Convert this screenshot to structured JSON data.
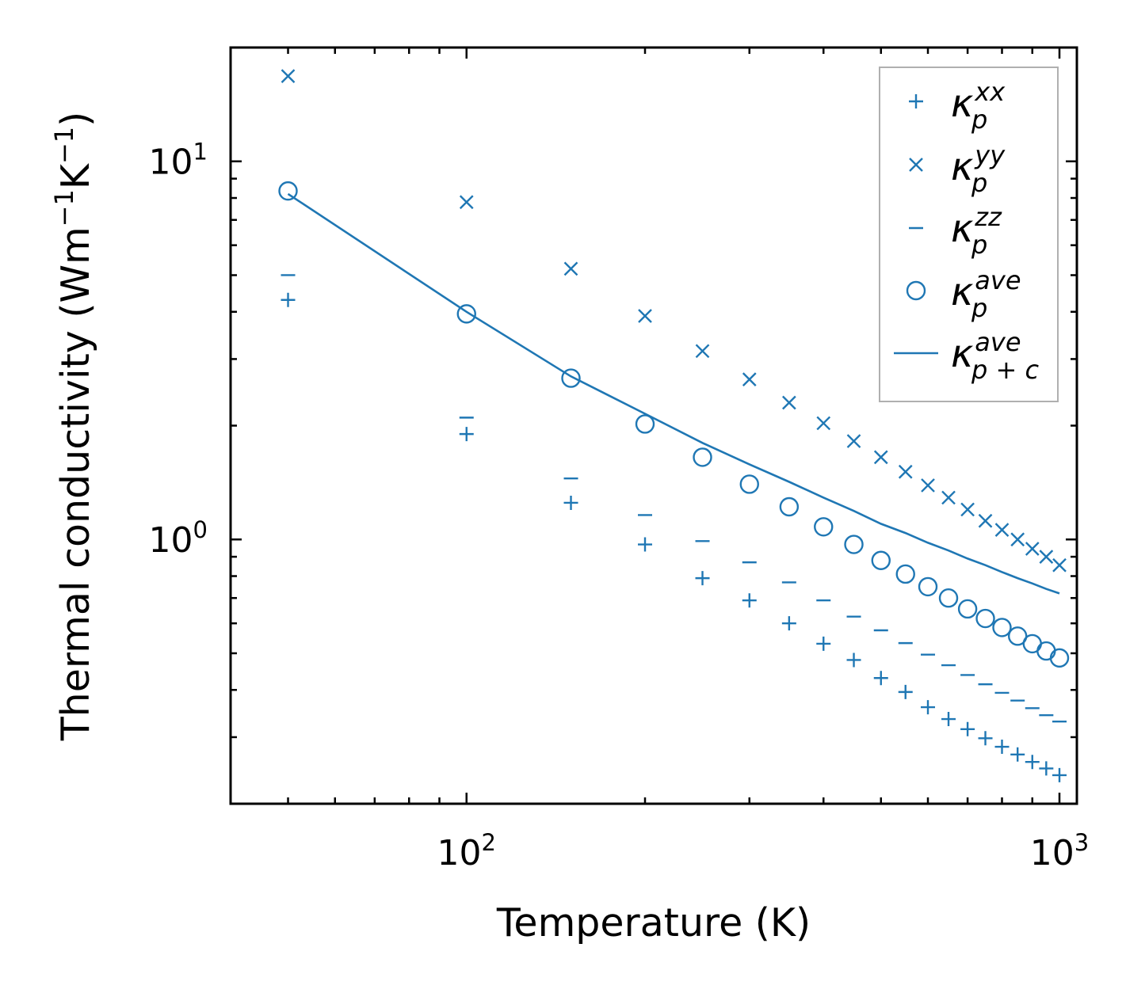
{
  "chart_data": {
    "type": "scatter",
    "xscale": "log",
    "yscale": "log",
    "xlim": [
      40,
      1070
    ],
    "ylim": [
      0.2,
      20
    ],
    "xlabel": "Temperature (K)",
    "ylabel": {
      "base": "Thermal conductivity (Wm",
      "sup1": "−1",
      "mid": "K",
      "sup2": "−1",
      "end": ")"
    },
    "x_ticks": [
      {
        "value": 100,
        "base": "10",
        "exp": "2"
      },
      {
        "value": 1000,
        "base": "10",
        "exp": "3"
      }
    ],
    "y_ticks": [
      {
        "value": 1,
        "base": "10",
        "exp": "0"
      },
      {
        "value": 10,
        "base": "10",
        "exp": "1"
      }
    ],
    "color": "#1f77b4",
    "x": [
      50,
      100,
      150,
      200,
      250,
      300,
      350,
      400,
      450,
      500,
      550,
      600,
      650,
      700,
      750,
      800,
      850,
      900,
      950,
      1000
    ],
    "series": [
      {
        "name": "kappa_p_xx",
        "symbol": "κ",
        "sub": "p",
        "sup": "xx",
        "marker": "plus",
        "values": [
          4.3,
          1.9,
          1.25,
          0.97,
          0.79,
          0.69,
          0.6,
          0.53,
          0.48,
          0.43,
          0.395,
          0.36,
          0.335,
          0.315,
          0.298,
          0.283,
          0.27,
          0.258,
          0.248,
          0.238
        ]
      },
      {
        "name": "kappa_p_yy",
        "symbol": "κ",
        "sub": "p",
        "sup": "yy",
        "marker": "x",
        "values": [
          16.8,
          7.8,
          5.2,
          3.9,
          3.15,
          2.65,
          2.3,
          2.03,
          1.82,
          1.65,
          1.51,
          1.39,
          1.29,
          1.2,
          1.12,
          1.06,
          1.0,
          0.945,
          0.9,
          0.855
        ]
      },
      {
        "name": "kappa_p_zz",
        "symbol": "κ",
        "sub": "p",
        "sup": "zz",
        "marker": "hline",
        "values": [
          5.0,
          2.1,
          1.45,
          1.16,
          0.99,
          0.87,
          0.77,
          0.69,
          0.625,
          0.575,
          0.532,
          0.496,
          0.465,
          0.438,
          0.414,
          0.393,
          0.375,
          0.358,
          0.343,
          0.33
        ]
      },
      {
        "name": "kappa_p_ave",
        "symbol": "κ",
        "sub": "p",
        "sup": "ave",
        "marker": "circle",
        "values": [
          8.35,
          3.95,
          2.67,
          2.02,
          1.65,
          1.4,
          1.22,
          1.08,
          0.97,
          0.88,
          0.81,
          0.75,
          0.7,
          0.655,
          0.618,
          0.585,
          0.555,
          0.53,
          0.507,
          0.486
        ]
      },
      {
        "name": "kappa_p_plus_c_ave",
        "symbol": "κ",
        "sub": "p + c",
        "sup": "ave",
        "marker": "line",
        "values": [
          8.2,
          4.0,
          2.7,
          2.15,
          1.8,
          1.58,
          1.42,
          1.29,
          1.19,
          1.1,
          1.04,
          0.98,
          0.935,
          0.89,
          0.855,
          0.82,
          0.79,
          0.765,
          0.74,
          0.72
        ]
      }
    ]
  }
}
